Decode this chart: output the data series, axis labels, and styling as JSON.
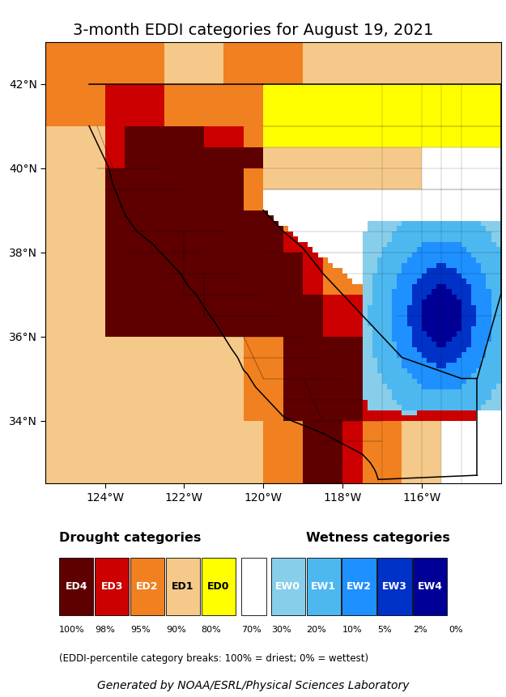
{
  "title": "3-month EDDI categories for August 19, 2021",
  "title_fontsize": 14,
  "subtitle": "Generated by NOAA/ESRL/Physical Sciences Laboratory",
  "subtitle_fontsize": 10,
  "legend_note": "(EDDI-percentile category breaks: 100% = driest; 0% = wettest)",
  "drought_label": "Drought categories",
  "wetness_label": "Wetness categories",
  "drought_categories": [
    "ED4",
    "ED3",
    "ED2",
    "ED1",
    "ED0"
  ],
  "wetness_categories": [
    "EW0",
    "EW1",
    "EW2",
    "EW3",
    "EW4"
  ],
  "drought_colors": [
    "#5E0000",
    "#CC0000",
    "#F08020",
    "#F5C98A",
    "#FFFF00"
  ],
  "wetness_colors": [
    "#87CEEB",
    "#4DB8F0",
    "#1E90FF",
    "#0032C8",
    "#000096"
  ],
  "drought_pcts": [
    "100%",
    "98%",
    "95%",
    "90%",
    "80%"
  ],
  "wetness_pcts_all": [
    "30%",
    "20%",
    "10%",
    "5%",
    "2%",
    "0%"
  ],
  "background_color": "#FFFFFF",
  "map_extent": [
    -125.5,
    -114.0,
    32.5,
    43.0
  ],
  "xticks": [
    -124,
    -122,
    -120,
    -118,
    -116
  ],
  "xtick_labels": [
    "124°W",
    "122°W",
    "120°W",
    "118°W",
    "116°W"
  ],
  "yticks": [
    34,
    36,
    38,
    40,
    42
  ],
  "ytick_labels": [
    "34°N",
    "36°N",
    "38°N",
    "40°N",
    "42°N"
  ],
  "fig_width": 6.25,
  "fig_height": 8.61,
  "cell_size": 0.125
}
